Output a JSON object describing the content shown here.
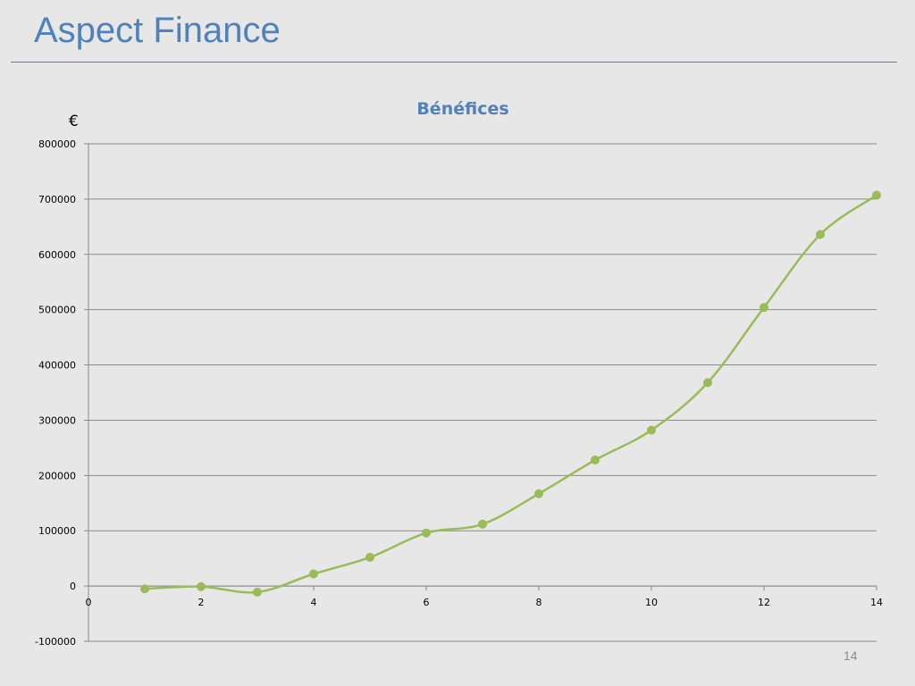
{
  "slide": {
    "title": "Aspect Finance",
    "page_number": "14"
  },
  "chart_data": {
    "type": "scatter",
    "title": "Bénéfices",
    "ylabel": "€",
    "xlabel": "",
    "xlim": [
      0,
      14
    ],
    "ylim": [
      -100000,
      800000
    ],
    "x_ticks": [
      0,
      2,
      4,
      6,
      8,
      10,
      12,
      14
    ],
    "y_ticks": [
      -100000,
      0,
      100000,
      200000,
      300000,
      400000,
      500000,
      600000,
      700000,
      800000
    ],
    "grid": true,
    "smooth": true,
    "series": [
      {
        "color": "#9bbb59",
        "x": [
          1,
          2,
          3,
          4,
          5,
          6,
          7,
          8,
          9,
          10,
          11,
          12,
          13,
          14
        ],
        "y": [
          -5000,
          -1000,
          -11000,
          22000,
          52000,
          96000,
          112000,
          167000,
          228000,
          282000,
          368000,
          504000,
          636000,
          707000
        ]
      }
    ]
  }
}
